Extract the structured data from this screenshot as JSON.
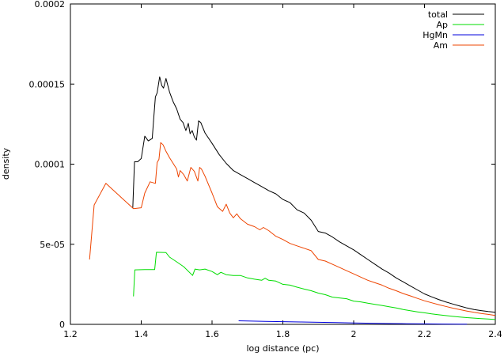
{
  "chart_data": {
    "type": "line",
    "title": "",
    "xlabel": "log distance (pc)",
    "ylabel": "density",
    "xlim": [
      1.2,
      2.4
    ],
    "ylim": [
      0,
      0.0002
    ],
    "grid": false,
    "legend_position": "top-right",
    "x_ticks": [
      {
        "value": 1.2,
        "label": "1.2"
      },
      {
        "value": 1.4,
        "label": "1.4"
      },
      {
        "value": 1.6,
        "label": "1.6"
      },
      {
        "value": 1.8,
        "label": "1.8"
      },
      {
        "value": 2.0,
        "label": "2"
      },
      {
        "value": 2.2,
        "label": "2.2"
      },
      {
        "value": 2.4,
        "label": "2.4"
      }
    ],
    "y_ticks": [
      {
        "value": 0,
        "label": "0"
      },
      {
        "value": 5e-05,
        "label": "5e-05"
      },
      {
        "value": 0.0001,
        "label": "0.0001"
      },
      {
        "value": 0.00015,
        "label": "0.00015"
      },
      {
        "value": 0.0002,
        "label": "0.0002"
      }
    ],
    "series": [
      {
        "name": "total",
        "color": "#000000",
        "points": [
          [
            1.376,
            7.25e-05
          ],
          [
            1.381,
            0.0001015
          ],
          [
            1.39,
            0.0001015
          ],
          [
            1.4,
            0.0001035
          ],
          [
            1.41,
            0.0001175
          ],
          [
            1.42,
            0.0001145
          ],
          [
            1.431,
            0.000116
          ],
          [
            1.435,
            0.000128
          ],
          [
            1.44,
            0.000142
          ],
          [
            1.445,
            0.0001445
          ],
          [
            1.452,
            0.0001545
          ],
          [
            1.458,
            0.000149
          ],
          [
            1.463,
            0.0001475
          ],
          [
            1.47,
            0.0001535
          ],
          [
            1.48,
            0.000145
          ],
          [
            1.49,
            0.000139
          ],
          [
            1.5,
            0.0001345
          ],
          [
            1.51,
            0.000128
          ],
          [
            1.518,
            0.000126
          ],
          [
            1.526,
            0.000121
          ],
          [
            1.533,
            0.0001255
          ],
          [
            1.538,
            0.000119
          ],
          [
            1.544,
            0.000121
          ],
          [
            1.55,
            0.000117
          ],
          [
            1.556,
            0.000115
          ],
          [
            1.562,
            0.000127
          ],
          [
            1.568,
            0.000126
          ],
          [
            1.58,
            0.0001195
          ],
          [
            1.6,
            0.000113
          ],
          [
            1.62,
            0.000106
          ],
          [
            1.64,
            0.0001005
          ],
          [
            1.66,
            9.6e-05
          ],
          [
            1.68,
            9.35e-05
          ],
          [
            1.7,
            9.1e-05
          ],
          [
            1.72,
            8.85e-05
          ],
          [
            1.74,
            8.6e-05
          ],
          [
            1.76,
            8.35e-05
          ],
          [
            1.78,
            8.15e-05
          ],
          [
            1.8,
            7.8e-05
          ],
          [
            1.82,
            7.6e-05
          ],
          [
            1.84,
            7.15e-05
          ],
          [
            1.86,
            6.95e-05
          ],
          [
            1.88,
            6.5e-05
          ],
          [
            1.9,
            5.8e-05
          ],
          [
            1.92,
            5.7e-05
          ],
          [
            1.94,
            5.45e-05
          ],
          [
            1.96,
            5.15e-05
          ],
          [
            1.98,
            4.9e-05
          ],
          [
            2.0,
            4.65e-05
          ],
          [
            2.02,
            4.35e-05
          ],
          [
            2.04,
            4.05e-05
          ],
          [
            2.06,
            3.75e-05
          ],
          [
            2.08,
            3.45e-05
          ],
          [
            2.1,
            3.2e-05
          ],
          [
            2.12,
            2.9e-05
          ],
          [
            2.14,
            2.65e-05
          ],
          [
            2.16,
            2.4e-05
          ],
          [
            2.18,
            2.15e-05
          ],
          [
            2.2,
            1.9e-05
          ],
          [
            2.22,
            1.72e-05
          ],
          [
            2.24,
            1.55e-05
          ],
          [
            2.26,
            1.4e-05
          ],
          [
            2.28,
            1.27e-05
          ],
          [
            2.3,
            1.14e-05
          ],
          [
            2.32,
            1.02e-05
          ],
          [
            2.34,
            9.3e-06
          ],
          [
            2.36,
            8.6e-06
          ],
          [
            2.38,
            8e-06
          ],
          [
            2.4,
            7.5e-06
          ]
        ]
      },
      {
        "name": "Ap",
        "color": "#00dd00",
        "points": [
          [
            1.378,
            1.75e-05
          ],
          [
            1.382,
            3.4e-05
          ],
          [
            1.41,
            3.42e-05
          ],
          [
            1.438,
            3.42e-05
          ],
          [
            1.443,
            4.5e-05
          ],
          [
            1.47,
            4.48e-05
          ],
          [
            1.48,
            4.2e-05
          ],
          [
            1.5,
            3.9e-05
          ],
          [
            1.52,
            3.6e-05
          ],
          [
            1.545,
            3.05e-05
          ],
          [
            1.552,
            3.45e-05
          ],
          [
            1.565,
            3.4e-05
          ],
          [
            1.58,
            3.45e-05
          ],
          [
            1.6,
            3.3e-05
          ],
          [
            1.615,
            3.1e-05
          ],
          [
            1.625,
            3.25e-05
          ],
          [
            1.64,
            3.1e-05
          ],
          [
            1.66,
            3.05e-05
          ],
          [
            1.68,
            3.05e-05
          ],
          [
            1.7,
            2.9e-05
          ],
          [
            1.72,
            2.82e-05
          ],
          [
            1.74,
            2.75e-05
          ],
          [
            1.75,
            2.88e-05
          ],
          [
            1.76,
            2.75e-05
          ],
          [
            1.78,
            2.7e-05
          ],
          [
            1.8,
            2.5e-05
          ],
          [
            1.82,
            2.45e-05
          ],
          [
            1.84,
            2.32e-05
          ],
          [
            1.86,
            2.2e-05
          ],
          [
            1.88,
            2.1e-05
          ],
          [
            1.9,
            1.95e-05
          ],
          [
            1.92,
            1.85e-05
          ],
          [
            1.94,
            1.7e-05
          ],
          [
            1.96,
            1.65e-05
          ],
          [
            1.98,
            1.6e-05
          ],
          [
            2.0,
            1.45e-05
          ],
          [
            2.02,
            1.4e-05
          ],
          [
            2.04,
            1.32e-05
          ],
          [
            2.06,
            1.25e-05
          ],
          [
            2.08,
            1.18e-05
          ],
          [
            2.1,
            1.1e-05
          ],
          [
            2.12,
            1.02e-05
          ],
          [
            2.14,
            9.3e-06
          ],
          [
            2.16,
            8.5e-06
          ],
          [
            2.18,
            7.8e-06
          ],
          [
            2.2,
            7.2e-06
          ],
          [
            2.22,
            6.5e-06
          ],
          [
            2.24,
            6e-06
          ],
          [
            2.26,
            5.5e-06
          ],
          [
            2.28,
            5e-06
          ],
          [
            2.3,
            4.6e-06
          ],
          [
            2.32,
            4.2e-06
          ],
          [
            2.34,
            3.9e-06
          ],
          [
            2.36,
            3.6e-06
          ],
          [
            2.38,
            3.3e-06
          ],
          [
            2.4,
            3e-06
          ]
        ]
      },
      {
        "name": "HgMn",
        "color": "#0000dd",
        "points": [
          [
            1.675,
            2.2e-06
          ],
          [
            1.7,
            2.1e-06
          ],
          [
            1.75,
            1.9e-06
          ],
          [
            1.8,
            1.7e-06
          ],
          [
            1.85,
            1.5e-06
          ],
          [
            1.9,
            1.3e-06
          ],
          [
            1.95,
            1.1e-06
          ],
          [
            2.0,
            9e-07
          ],
          [
            2.05,
            7e-07
          ],
          [
            2.1,
            5e-07
          ],
          [
            2.15,
            4e-07
          ],
          [
            2.2,
            3e-07
          ],
          [
            2.25,
            2e-07
          ],
          [
            2.3,
            1e-07
          ],
          [
            2.32,
            1e-07
          ]
        ]
      },
      {
        "name": "Am",
        "color": "#ee4400",
        "points": [
          [
            1.254,
            4.05e-05
          ],
          [
            1.267,
            7.45e-05
          ],
          [
            1.3,
            8.8e-05
          ],
          [
            1.378,
            7.22e-05
          ],
          [
            1.4,
            7.28e-05
          ],
          [
            1.41,
            8.2e-05
          ],
          [
            1.425,
            8.9e-05
          ],
          [
            1.44,
            8.8e-05
          ],
          [
            1.445,
            0.000101
          ],
          [
            1.45,
            0.000103
          ],
          [
            1.455,
            0.0001135
          ],
          [
            1.462,
            0.000112
          ],
          [
            1.47,
            0.000108
          ],
          [
            1.48,
            0.000104
          ],
          [
            1.5,
            9.7e-05
          ],
          [
            1.505,
            9.2e-05
          ],
          [
            1.51,
            9.6e-05
          ],
          [
            1.52,
            9.35e-05
          ],
          [
            1.53,
            8.95e-05
          ],
          [
            1.54,
            9.8e-05
          ],
          [
            1.55,
            9.55e-05
          ],
          [
            1.56,
            8.95e-05
          ],
          [
            1.565,
            9.8e-05
          ],
          [
            1.57,
            9.7e-05
          ],
          [
            1.58,
            9.25e-05
          ],
          [
            1.6,
            8.2e-05
          ],
          [
            1.615,
            7.35e-05
          ],
          [
            1.63,
            7.05e-05
          ],
          [
            1.64,
            7.5e-05
          ],
          [
            1.65,
            6.95e-05
          ],
          [
            1.66,
            6.65e-05
          ],
          [
            1.67,
            6.9e-05
          ],
          [
            1.68,
            6.6e-05
          ],
          [
            1.7,
            6.25e-05
          ],
          [
            1.72,
            6.1e-05
          ],
          [
            1.735,
            5.9e-05
          ],
          [
            1.745,
            6.05e-05
          ],
          [
            1.76,
            5.85e-05
          ],
          [
            1.78,
            5.5e-05
          ],
          [
            1.8,
            5.3e-05
          ],
          [
            1.82,
            5.05e-05
          ],
          [
            1.84,
            4.9e-05
          ],
          [
            1.86,
            4.75e-05
          ],
          [
            1.88,
            4.6e-05
          ],
          [
            1.9,
            4.05e-05
          ],
          [
            1.92,
            3.95e-05
          ],
          [
            1.94,
            3.75e-05
          ],
          [
            1.96,
            3.55e-05
          ],
          [
            1.98,
            3.35e-05
          ],
          [
            2.0,
            3.15e-05
          ],
          [
            2.02,
            2.95e-05
          ],
          [
            2.04,
            2.75e-05
          ],
          [
            2.06,
            2.6e-05
          ],
          [
            2.08,
            2.45e-05
          ],
          [
            2.1,
            2.25e-05
          ],
          [
            2.12,
            2.1e-05
          ],
          [
            2.14,
            1.92e-05
          ],
          [
            2.16,
            1.78e-05
          ],
          [
            2.18,
            1.62e-05
          ],
          [
            2.2,
            1.47e-05
          ],
          [
            2.22,
            1.35e-05
          ],
          [
            2.24,
            1.23e-05
          ],
          [
            2.26,
            1.12e-05
          ],
          [
            2.28,
            1.01e-05
          ],
          [
            2.3,
            9.2e-06
          ],
          [
            2.32,
            8.3e-06
          ],
          [
            2.34,
            7.5e-06
          ],
          [
            2.36,
            6.8e-06
          ],
          [
            2.38,
            6.2e-06
          ],
          [
            2.4,
            5.6e-06
          ]
        ]
      }
    ]
  }
}
